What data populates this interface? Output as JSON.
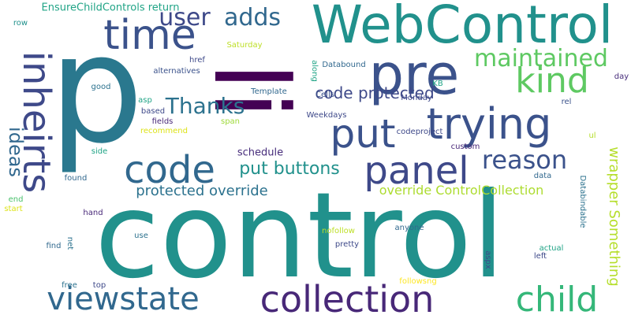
{
  "words": [
    {
      "text": "control",
      "color": "#21918c",
      "vertical": false
    },
    {
      "text": "p",
      "color": "#2a788e",
      "vertical": false
    },
    {
      "text": "li",
      "color": "#440154",
      "vertical": true
    },
    {
      "text": "WebControl",
      "color": "#21918c",
      "vertical": false
    },
    {
      "text": "pre",
      "color": "#3b528b",
      "vertical": false
    },
    {
      "text": "time",
      "color": "#3b528b",
      "vertical": false
    },
    {
      "text": "trying",
      "color": "#3b528b",
      "vertical": false
    },
    {
      "text": "put",
      "color": "#3b528b",
      "vertical": false
    },
    {
      "text": "code",
      "color": "#31688e",
      "vertical": false
    },
    {
      "text": "panel",
      "color": "#3e4989",
      "vertical": false
    },
    {
      "text": "inheirts",
      "color": "#3e4989",
      "vertical": true
    },
    {
      "text": "kind",
      "color": "#5ec962",
      "vertical": false
    },
    {
      "text": "collection",
      "color": "#482878",
      "vertical": false
    },
    {
      "text": "viewstate",
      "color": "#31688e",
      "vertical": false
    },
    {
      "text": "child",
      "color": "#35b779",
      "vertical": false
    },
    {
      "text": "maintained",
      "color": "#5ec962",
      "vertical": false
    },
    {
      "text": "adds",
      "color": "#31688e",
      "vertical": false
    },
    {
      "text": "user",
      "color": "#3e4989",
      "vertical": false
    },
    {
      "text": "reason",
      "color": "#3b528b",
      "vertical": false
    },
    {
      "text": "Thanks",
      "color": "#2c728e",
      "vertical": false
    },
    {
      "text": "ideas",
      "color": "#31688e",
      "vertical": true
    },
    {
      "text": "put buttons",
      "color": "#21918c",
      "vertical": false
    },
    {
      "text": "code protected",
      "color": "#3e4989",
      "vertical": false
    },
    {
      "text": "protected override",
      "color": "#2c728e",
      "vertical": false
    },
    {
      "text": "override ControlCollection",
      "color": "#addc30",
      "vertical": false
    },
    {
      "text": "wrapper Something",
      "color": "#b5de2b",
      "vertical": true
    },
    {
      "text": "EnsureChildControls return",
      "color": "#20a486",
      "vertical": false
    },
    {
      "text": "schedule",
      "color": "#472d7b",
      "vertical": false
    },
    {
      "text": "row",
      "color": "#21918c",
      "vertical": false
    },
    {
      "text": "Cells",
      "color": "#3b528b",
      "vertical": false
    },
    {
      "text": "Template",
      "color": "#31688e",
      "vertical": false
    },
    {
      "text": "Databound",
      "color": "#31688e",
      "vertical": false
    },
    {
      "text": "KB",
      "color": "#20a486",
      "vertical": false
    },
    {
      "text": "Monday",
      "color": "#3e4989",
      "vertical": false
    },
    {
      "text": "Weekdays",
      "color": "#3e4989",
      "vertical": false
    },
    {
      "text": "codeproject",
      "color": "#3e4989",
      "vertical": false
    },
    {
      "text": "custom",
      "color": "#482878",
      "vertical": false
    },
    {
      "text": "Saturday",
      "color": "#bddf26",
      "vertical": false
    },
    {
      "text": "href",
      "color": "#3e4989",
      "vertical": false
    },
    {
      "text": "alternatives",
      "color": "#3b528b",
      "vertical": false
    },
    {
      "text": "good",
      "color": "#2c728e",
      "vertical": false
    },
    {
      "text": "asp",
      "color": "#20a486",
      "vertical": false
    },
    {
      "text": "based",
      "color": "#3e4989",
      "vertical": false
    },
    {
      "text": "fields",
      "color": "#482878",
      "vertical": false
    },
    {
      "text": "recommend",
      "color": "#dde318",
      "vertical": false
    },
    {
      "text": "span",
      "color": "#9fda3a",
      "vertical": false
    },
    {
      "text": "along",
      "color": "#20a486",
      "vertical": true
    },
    {
      "text": "day",
      "color": "#472d7b",
      "vertical": false
    },
    {
      "text": "rel",
      "color": "#3b528b",
      "vertical": false
    },
    {
      "text": "ul",
      "color": "#b5de2b",
      "vertical": false
    },
    {
      "text": "side",
      "color": "#20a486",
      "vertical": false
    },
    {
      "text": "found",
      "color": "#31688e",
      "vertical": false
    },
    {
      "text": "end",
      "color": "#4ac16d",
      "vertical": false
    },
    {
      "text": "start",
      "color": "#dde318",
      "vertical": false
    },
    {
      "text": "hand",
      "color": "#482878",
      "vertical": false
    },
    {
      "text": "data",
      "color": "#31688e",
      "vertical": false
    },
    {
      "text": "Databindable",
      "color": "#2c728e",
      "vertical": true
    },
    {
      "text": "use",
      "color": "#2c728e",
      "vertical": false
    },
    {
      "text": "find",
      "color": "#31688e",
      "vertical": false
    },
    {
      "text": "net",
      "color": "#2c728e",
      "vertical": true
    },
    {
      "text": "nofollow",
      "color": "#bddf26",
      "vertical": false
    },
    {
      "text": "anyone",
      "color": "#31688e",
      "vertical": false
    },
    {
      "text": "pretty",
      "color": "#3e4989",
      "vertical": false
    },
    {
      "text": "aspx",
      "color": "#3e4989",
      "vertical": true
    },
    {
      "text": "actual",
      "color": "#20a486",
      "vertical": false
    },
    {
      "text": "left",
      "color": "#3e4989",
      "vertical": false
    },
    {
      "text": "free",
      "color": "#2c728e",
      "vertical": false
    },
    {
      "text": "top",
      "color": "#3e4989",
      "vertical": false
    },
    {
      "text": "followsng",
      "color": "#fde725",
      "vertical": false
    }
  ]
}
